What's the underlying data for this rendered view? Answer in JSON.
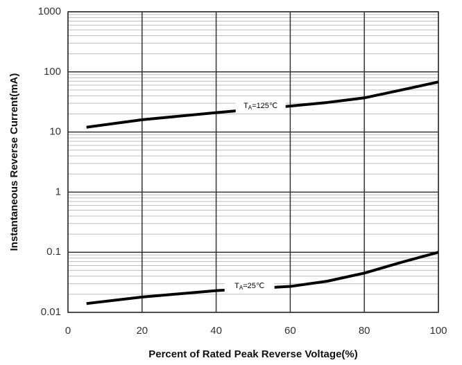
{
  "chart_data": {
    "type": "line",
    "x_label": "Percent of Rated Peak Reverse Voltage(%)",
    "y_label": "Instantaneous Reverse Current(mA)",
    "xlim": [
      0,
      100
    ],
    "xticks": [
      0,
      20,
      40,
      60,
      80,
      100
    ],
    "ylim": [
      0.01,
      1000
    ],
    "yticks": [
      0.01,
      0.1,
      1,
      10,
      100,
      1000
    ],
    "ylog": true,
    "grid": true,
    "series": [
      {
        "name": "TA=125℃",
        "color": "#000000",
        "x": [
          5,
          20,
          40,
          60,
          70,
          80,
          90,
          100
        ],
        "values": [
          12,
          16,
          21,
          27,
          31,
          37,
          50,
          68
        ]
      },
      {
        "name": "TA=25℃",
        "color": "#000000",
        "x": [
          5,
          20,
          40,
          60,
          70,
          80,
          90,
          100
        ],
        "values": [
          0.014,
          0.018,
          0.023,
          0.027,
          0.033,
          0.045,
          0.068,
          0.1
        ]
      }
    ]
  }
}
